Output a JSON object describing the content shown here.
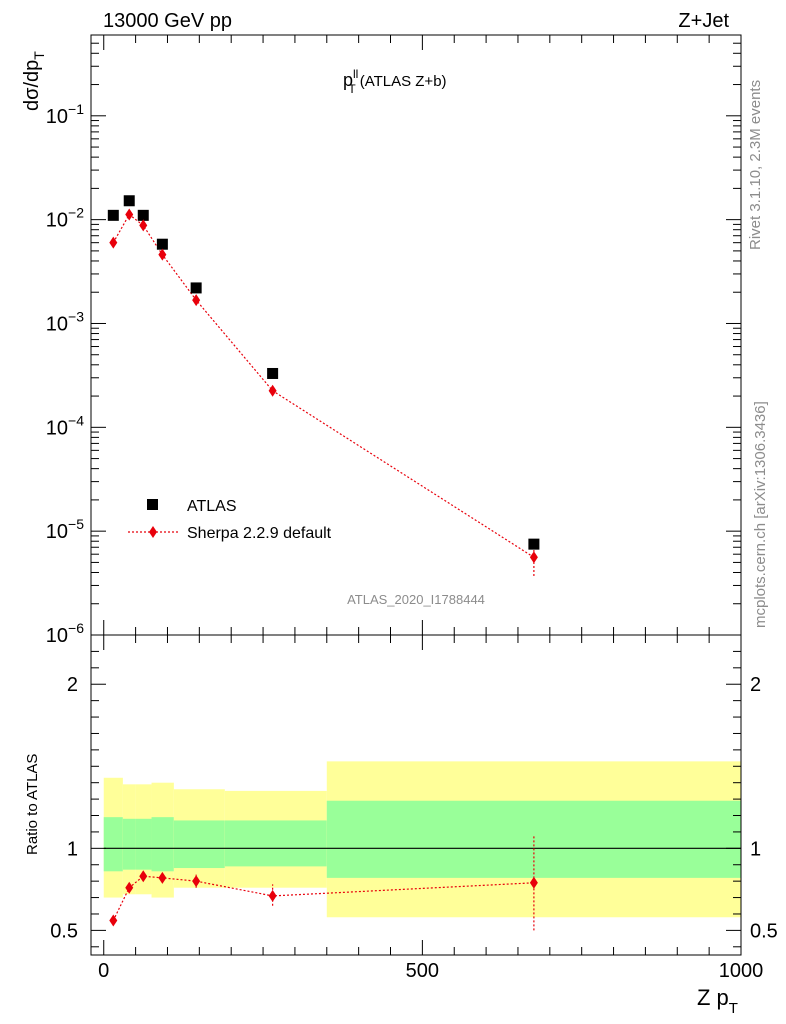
{
  "header": {
    "energy_label": "13000 GeV pp",
    "process_label": "Z+Jet"
  },
  "side_text": {
    "rivet_label": "Rivet 3.1.10,  2.3M events",
    "source_label": "mcplots.cern.ch [arXiv:1306.3436]"
  },
  "colors": {
    "data": "#000000",
    "mc": "#e8000b",
    "band_inner": "#99ff99",
    "band_outer": "#ffff99",
    "watermark": "#8c8c8c"
  },
  "chart_data": [
    {
      "type": "scatter",
      "title": "p_T^ll (ATLAS Z+b)",
      "title_main": "p",
      "title_sup": "ll",
      "title_sub": "T",
      "title_rest": "(ATLAS Z+b)",
      "ylabel_main": "dσ/dp",
      "ylabel_sub": "T",
      "yscale": "log",
      "ylim": [
        1e-06,
        0.6
      ],
      "xlim": [
        -20,
        1000
      ],
      "y_ticks": [
        {
          "value": 1e-06,
          "base": "10",
          "exp": "−6"
        },
        {
          "value": 1e-05,
          "base": "10",
          "exp": "−5"
        },
        {
          "value": 0.0001,
          "base": "10",
          "exp": "−4"
        },
        {
          "value": 0.001,
          "base": "10",
          "exp": "−3"
        },
        {
          "value": 0.01,
          "base": "10",
          "exp": "−2"
        },
        {
          "value": 0.1,
          "base": "10",
          "exp": "−1"
        }
      ],
      "watermark": "ATLAS_2020_I1788444",
      "legend_position": "lower-left",
      "series": [
        {
          "name": "ATLAS",
          "marker": "square",
          "x": [
            15,
            40,
            62,
            92,
            145,
            265,
            675
          ],
          "y": [
            0.011,
            0.0152,
            0.011,
            0.0058,
            0.0022,
            0.00033,
            7.5e-06
          ]
        },
        {
          "name": "Sherpa 2.2.9 default",
          "marker": "diamond",
          "line": "dotted",
          "x": [
            15,
            40,
            62,
            92,
            145,
            265,
            675
          ],
          "y": [
            0.006,
            0.0112,
            0.0088,
            0.0046,
            0.00168,
            0.000225,
            5.6e-06
          ],
          "yerr_low": [
            0.0004,
            0.0004,
            0.0003,
            0.0002,
            7e-05,
            2e-05,
            1.9e-06
          ],
          "yerr_high": [
            0.0004,
            0.0004,
            0.0003,
            0.0002,
            7e-05,
            2e-05,
            1.9e-06
          ]
        }
      ]
    },
    {
      "type": "scatter",
      "ylabel": "Ratio to ATLAS",
      "xlabel_main": "Z p",
      "xlabel_sub": "T",
      "ylim": [
        0.35,
        2.3
      ],
      "xlim": [
        -20,
        1000
      ],
      "y_ticks": [
        0.5,
        1,
        2
      ],
      "x_ticks": [
        0,
        500,
        1000
      ],
      "reference_line": 1,
      "bands": {
        "edges": [
          0,
          30,
          50,
          75,
          110,
          190,
          350,
          1000
        ],
        "inner_low": [
          0.86,
          0.87,
          0.87,
          0.86,
          0.88,
          0.89,
          0.82
        ],
        "inner_high": [
          1.19,
          1.18,
          1.18,
          1.19,
          1.17,
          1.17,
          1.29
        ],
        "outer_low": [
          0.7,
          0.72,
          0.72,
          0.7,
          0.76,
          0.76,
          0.58
        ],
        "outer_high": [
          1.43,
          1.39,
          1.39,
          1.4,
          1.36,
          1.35,
          1.53
        ]
      },
      "series": [
        {
          "name": "Sherpa 2.2.9 default",
          "x": [
            15,
            40,
            62,
            92,
            145,
            265,
            675
          ],
          "y": [
            0.56,
            0.76,
            0.83,
            0.82,
            0.8,
            0.71,
            0.79
          ],
          "yerr_low": [
            0.03,
            0.025,
            0.025,
            0.025,
            0.04,
            0.06,
            0.29
          ],
          "yerr_high": [
            0.03,
            0.025,
            0.025,
            0.025,
            0.04,
            0.07,
            0.29
          ]
        }
      ]
    }
  ]
}
